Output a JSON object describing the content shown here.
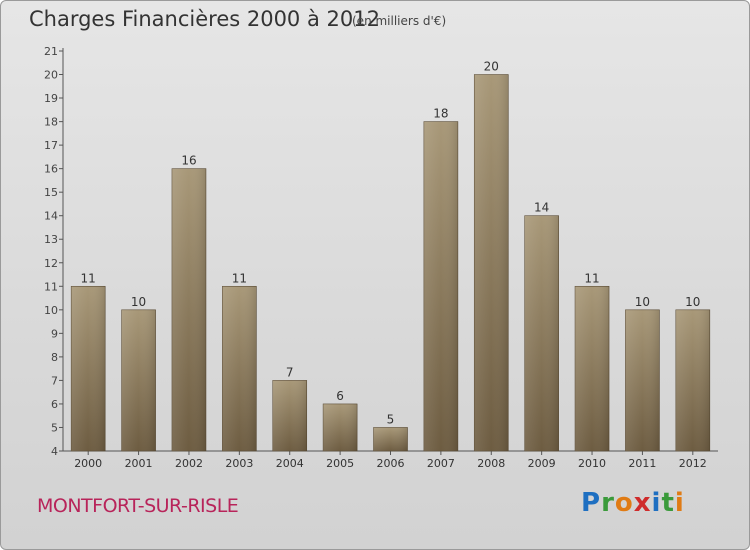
{
  "header": {
    "title": "Charges Financières 2000 à 2012",
    "subtitle": "(en milliers d'€)"
  },
  "footer": {
    "city": "MONTFORT-SUR-RISLE",
    "logo_letters": [
      "P",
      "r",
      "o",
      "x",
      "i",
      "t",
      "i"
    ],
    "logo_colors": [
      "#1e6fc1",
      "#3a9a3a",
      "#e07b14",
      "#cf2b2b",
      "#1e6fc1",
      "#3a9a3a",
      "#e07b14"
    ]
  },
  "chart_data": {
    "type": "bar",
    "title": "Charges Financières 2000 à 2012",
    "subtitle": "(en milliers d'€)",
    "categories": [
      "2000",
      "2001",
      "2002",
      "2003",
      "2004",
      "2005",
      "2006",
      "2007",
      "2008",
      "2009",
      "2010",
      "2011",
      "2012"
    ],
    "values": [
      11,
      10,
      16,
      11,
      7,
      6,
      5,
      18,
      20,
      14,
      11,
      10,
      10
    ],
    "ylim": [
      4,
      21
    ],
    "yticks": [
      4,
      5,
      6,
      7,
      8,
      9,
      10,
      11,
      12,
      13,
      14,
      15,
      16,
      17,
      18,
      19,
      20,
      21
    ],
    "grid": false,
    "bar_color_top": "#a89878",
    "bar_color_bottom": "#6d5c41",
    "xlabel": "",
    "ylabel": ""
  }
}
